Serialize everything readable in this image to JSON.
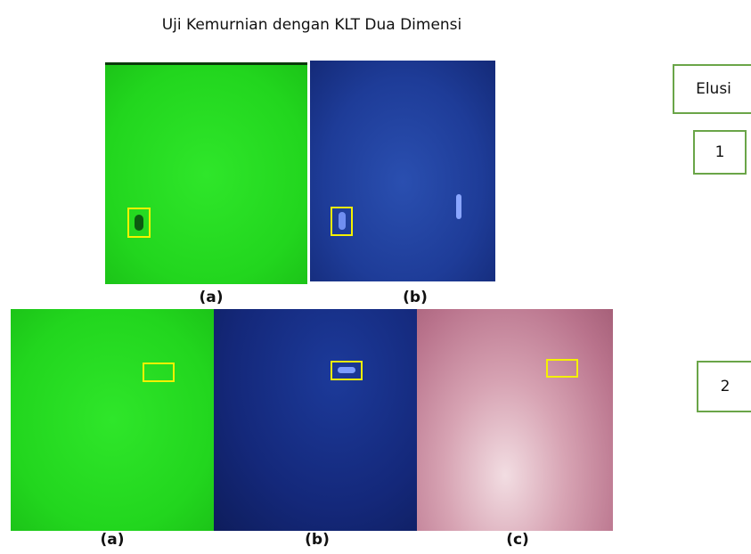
{
  "header": {
    "title": "Uji Kemurnian dengan KLT Dua Dimensi"
  },
  "panels": [
    {
      "labels": [
        "(a)",
        "(b)"
      ]
    },
    {
      "labels": [
        "(a)",
        "(b)",
        "(c)"
      ]
    }
  ],
  "elution": {
    "header": "Elusi",
    "rows": [
      "1",
      "2"
    ]
  }
}
